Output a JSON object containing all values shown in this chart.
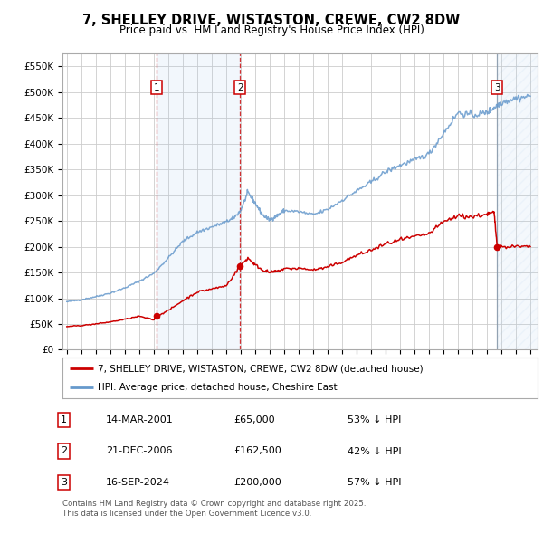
{
  "title_line1": "7, SHELLEY DRIVE, WISTASTON, CREWE, CW2 8DW",
  "title_line2": "Price paid vs. HM Land Registry's House Price Index (HPI)",
  "ylim": [
    0,
    575000
  ],
  "yticks": [
    0,
    50000,
    100000,
    150000,
    200000,
    250000,
    300000,
    350000,
    400000,
    450000,
    500000,
    550000
  ],
  "ytick_labels": [
    "£0",
    "£50K",
    "£100K",
    "£150K",
    "£200K",
    "£250K",
    "£300K",
    "£350K",
    "£400K",
    "£450K",
    "£500K",
    "£550K"
  ],
  "xlim_start": 1994.7,
  "xlim_end": 2027.5,
  "hpi_color": "#6699cc",
  "price_color": "#cc0000",
  "background_color": "#ffffff",
  "grid_color": "#cccccc",
  "transactions": [
    {
      "num": 1,
      "date": "14-MAR-2001",
      "price": 65000,
      "hpi_pct": "53% ↓ HPI",
      "x_year": 2001.2
    },
    {
      "num": 2,
      "date": "21-DEC-2006",
      "price": 162500,
      "hpi_pct": "42% ↓ HPI",
      "x_year": 2006.97
    },
    {
      "num": 3,
      "date": "16-SEP-2024",
      "price": 200000,
      "hpi_pct": "57% ↓ HPI",
      "x_year": 2024.71
    }
  ],
  "legend_label_price": "7, SHELLEY DRIVE, WISTASTON, CREWE, CW2 8DW (detached house)",
  "legend_label_hpi": "HPI: Average price, detached house, Cheshire East",
  "footer_text": "Contains HM Land Registry data © Crown copyright and database right 2025.\nThis data is licensed under the Open Government Licence v3.0.",
  "table_rows": [
    {
      "num": "1",
      "date": "14-MAR-2001",
      "price": "£65,000",
      "pct": "53% ↓ HPI"
    },
    {
      "num": "2",
      "date": "21-DEC-2006",
      "price": "£162,500",
      "pct": "42% ↓ HPI"
    },
    {
      "num": "3",
      "date": "16-SEP-2024",
      "price": "£200,000",
      "pct": "57% ↓ HPI"
    }
  ]
}
